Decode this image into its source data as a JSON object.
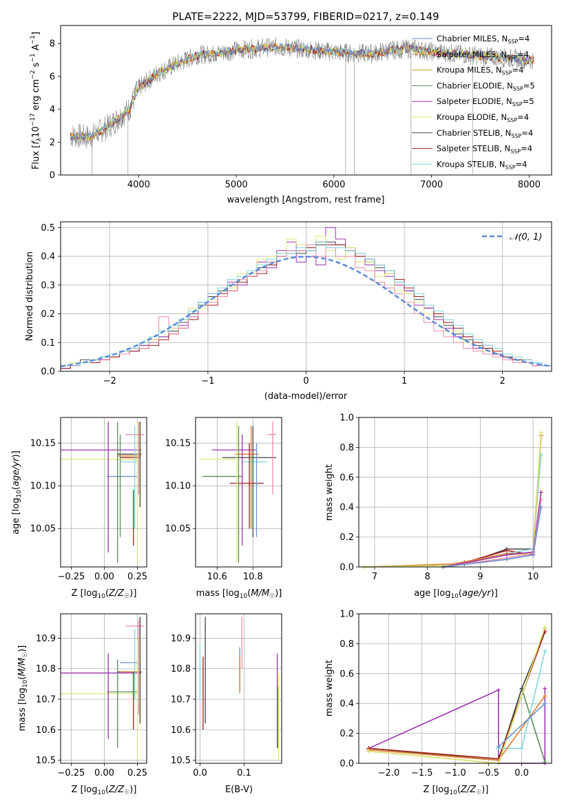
{
  "figure_title": "PLATE=2222, MJD=53799, FIBERID=0217, z=0.149",
  "colors": {
    "Chabrier MILES": "#6a8fd0",
    "Salpeter MILES": "#e07b2a",
    "Kroupa MILES": "#c99a18",
    "Chabrier ELODIE": "#5b8a5b",
    "Salpeter ELODIE": "#9b30b0",
    "Kroupa ELODIE": "#d9e86b",
    "Chabrier STELIB": "#444444",
    "Salpeter STELIB": "#a01818",
    "Kroupa STELIB": "#7fd6e0",
    "Pink": "#e88aa8",
    "data": "#808080"
  },
  "chart_data": [
    {
      "id": "spectrum",
      "type": "line",
      "title": "PLATE=2222, MJD=53799, FIBERID=0217, z=0.149",
      "xlabel": "wavelength [Angstrom, rest frame]",
      "ylabel": "Flux [f_λ 10^-17 erg cm^-2 s^-1 A^-1]",
      "xlim": [
        3200,
        8230
      ],
      "ylim": [
        0,
        9.1
      ],
      "xticks": [
        4000,
        5000,
        6000,
        7000,
        8000
      ],
      "yticks": [
        0,
        2,
        4,
        6,
        8
      ],
      "grid": false,
      "legend_position": "top-right",
      "legend": [
        "Chabrier MILES, N_SSP=4",
        "Salpeter MILES, N_SSP=4",
        "Kroupa MILES, N_SSP=4",
        "Chabrier ELODIE, N_SSP=5",
        "Salpeter ELODIE, N_SSP=5",
        "Kroupa ELODIE, N_SSP=4",
        "Chabrier STELIB, N_SSP=4",
        "Salpeter STELIB, N_SSP=4",
        "Kroupa STELIB, N_SSP=4"
      ],
      "continuum": [
        [
          3300,
          2.4
        ],
        [
          3500,
          2.3
        ],
        [
          3700,
          3.0
        ],
        [
          3900,
          4.0
        ],
        [
          4000,
          5.3
        ],
        [
          4200,
          6.2
        ],
        [
          4400,
          6.8
        ],
        [
          4600,
          7.3
        ],
        [
          4800,
          7.4
        ],
        [
          5000,
          7.6
        ],
        [
          5200,
          7.7
        ],
        [
          5400,
          7.8
        ],
        [
          5600,
          7.7
        ],
        [
          5800,
          7.6
        ],
        [
          6000,
          7.5
        ],
        [
          6200,
          7.4
        ],
        [
          6400,
          7.4
        ],
        [
          6600,
          7.6
        ],
        [
          6800,
          7.7
        ],
        [
          7000,
          7.5
        ],
        [
          7200,
          7.4
        ],
        [
          7400,
          7.3
        ],
        [
          7600,
          7.2
        ],
        [
          7800,
          7.1
        ],
        [
          8000,
          7.0
        ]
      ]
    },
    {
      "id": "residuals",
      "type": "bar",
      "xlabel": "(data-model)/error",
      "ylabel": "Normed distribution",
      "xlim": [
        -2.5,
        2.5
      ],
      "ylim": [
        0,
        0.52
      ],
      "xticks": [
        -2,
        -1,
        0,
        1,
        2
      ],
      "yticks": [
        0.0,
        0.1,
        0.2,
        0.3,
        0.4,
        0.5
      ],
      "grid": true,
      "legend_position": "top-right",
      "legend": [
        "N(0,1)"
      ],
      "bins": [
        -2.5,
        -2.4,
        -2.3,
        -2.2,
        -2.1,
        -2.0,
        -1.9,
        -1.8,
        -1.7,
        -1.6,
        -1.5,
        -1.4,
        -1.3,
        -1.2,
        -1.1,
        -1.0,
        -0.9,
        -0.8,
        -0.7,
        -0.6,
        -0.5,
        -0.4,
        -0.3,
        -0.2,
        -0.1,
        0.0,
        0.1,
        0.2,
        0.3,
        0.4,
        0.5,
        0.6,
        0.7,
        0.8,
        0.9,
        1.0,
        1.1,
        1.2,
        1.3,
        1.4,
        1.5,
        1.6,
        1.7,
        1.8,
        1.9,
        2.0,
        2.1,
        2.2,
        2.3,
        2.4
      ],
      "series": [
        {
          "color": "#444444",
          "values": [
            0.02,
            0.03,
            0.04,
            0.04,
            0.05,
            0.05,
            0.07,
            0.08,
            0.09,
            0.1,
            0.12,
            0.14,
            0.17,
            0.2,
            0.23,
            0.26,
            0.28,
            0.3,
            0.32,
            0.34,
            0.36,
            0.38,
            0.4,
            0.42,
            0.41,
            0.42,
            0.44,
            0.45,
            0.44,
            0.42,
            0.4,
            0.38,
            0.36,
            0.34,
            0.31,
            0.28,
            0.25,
            0.22,
            0.19,
            0.16,
            0.13,
            0.11,
            0.09,
            0.08,
            0.06,
            0.05,
            0.04,
            0.03,
            0.03,
            0.02
          ]
        },
        {
          "color": "#9b30b0",
          "values": [
            0.01,
            0.02,
            0.03,
            0.04,
            0.04,
            0.06,
            0.06,
            0.07,
            0.09,
            0.11,
            0.12,
            0.15,
            0.16,
            0.19,
            0.24,
            0.27,
            0.26,
            0.31,
            0.3,
            0.33,
            0.38,
            0.36,
            0.42,
            0.45,
            0.38,
            0.4,
            0.37,
            0.5,
            0.46,
            0.43,
            0.41,
            0.37,
            0.35,
            0.33,
            0.3,
            0.28,
            0.23,
            0.22,
            0.18,
            0.15,
            0.12,
            0.12,
            0.08,
            0.09,
            0.06,
            0.05,
            0.04,
            0.03,
            0.02,
            0.02
          ]
        },
        {
          "color": "#d9e86b",
          "values": [
            0.02,
            0.03,
            0.03,
            0.04,
            0.05,
            0.06,
            0.07,
            0.08,
            0.1,
            0.11,
            0.14,
            0.15,
            0.18,
            0.22,
            0.22,
            0.25,
            0.29,
            0.29,
            0.34,
            0.34,
            0.39,
            0.4,
            0.41,
            0.46,
            0.44,
            0.43,
            0.47,
            0.42,
            0.39,
            0.43,
            0.38,
            0.38,
            0.33,
            0.34,
            0.28,
            0.27,
            0.24,
            0.2,
            0.2,
            0.14,
            0.14,
            0.1,
            0.1,
            0.07,
            0.07,
            0.05,
            0.05,
            0.03,
            0.03,
            0.02
          ]
        },
        {
          "color": "#a01818",
          "values": [
            0.01,
            0.02,
            0.03,
            0.03,
            0.04,
            0.05,
            0.06,
            0.07,
            0.08,
            0.09,
            0.11,
            0.13,
            0.15,
            0.18,
            0.2,
            0.23,
            0.27,
            0.28,
            0.31,
            0.33,
            0.34,
            0.37,
            0.4,
            0.41,
            0.42,
            0.43,
            0.45,
            0.44,
            0.44,
            0.42,
            0.4,
            0.39,
            0.37,
            0.35,
            0.32,
            0.29,
            0.26,
            0.23,
            0.2,
            0.17,
            0.15,
            0.12,
            0.1,
            0.08,
            0.07,
            0.05,
            0.04,
            0.04,
            0.03,
            0.02
          ]
        },
        {
          "color": "#e88aa8",
          "values": [
            0.02,
            0.02,
            0.03,
            0.04,
            0.04,
            0.06,
            0.06,
            0.08,
            0.08,
            0.1,
            0.19,
            0.13,
            0.15,
            0.19,
            0.2,
            0.24,
            0.26,
            0.28,
            0.32,
            0.33,
            0.35,
            0.38,
            0.4,
            0.42,
            0.42,
            0.44,
            0.4,
            0.43,
            0.4,
            0.4,
            0.36,
            0.35,
            0.31,
            0.29,
            0.27,
            0.24,
            0.2,
            0.17,
            0.14,
            0.12,
            0.1,
            0.08,
            0.07,
            0.06,
            0.05,
            0.04,
            0.03,
            0.03,
            0.02,
            0.02
          ]
        },
        {
          "color": "#7fd6e0",
          "values": [
            0.02,
            0.02,
            0.03,
            0.04,
            0.05,
            0.06,
            0.07,
            0.08,
            0.1,
            0.12,
            0.14,
            0.16,
            0.18,
            0.21,
            0.24,
            0.27,
            0.29,
            0.32,
            0.33,
            0.35,
            0.37,
            0.39,
            0.41,
            0.41,
            0.43,
            0.42,
            0.45,
            0.43,
            0.43,
            0.42,
            0.41,
            0.39,
            0.37,
            0.35,
            0.31,
            0.3,
            0.27,
            0.23,
            0.21,
            0.18,
            0.16,
            0.13,
            0.11,
            0.09,
            0.08,
            0.06,
            0.05,
            0.04,
            0.03,
            0.02
          ]
        }
      ],
      "gaussian": {
        "mu": 0,
        "sigma": 1
      }
    },
    {
      "id": "age-vs-Z",
      "type": "scatter",
      "xlabel": "Z [log10(Z/Z☉)]",
      "ylabel": "age [log10(age/yr)]",
      "xlim": [
        -0.33,
        0.32
      ],
      "ylim": [
        10.005,
        10.18
      ],
      "xticks": [
        -0.25,
        0.0,
        0.25
      ],
      "yticks": [
        10.05,
        10.1,
        10.15
      ],
      "grid": true
    },
    {
      "id": "age-vs-mass",
      "type": "scatter",
      "xlabel": "mass [log10(M/M☉)]",
      "ylabel": "",
      "xlim": [
        10.48,
        10.96
      ],
      "ylim": [
        10.005,
        10.18
      ],
      "xticks": [
        10.6,
        10.8
      ],
      "yticks": [
        10.05,
        10.1,
        10.15
      ],
      "grid": true
    },
    {
      "id": "mass-weight-vs-age",
      "type": "line",
      "xlabel": "age [log10(age/yr)]",
      "ylabel": "mass weight",
      "xlim": [
        6.7,
        10.35
      ],
      "ylim": [
        0,
        1.0
      ],
      "xticks": [
        7,
        8,
        9,
        10
      ],
      "yticks": [
        0.0,
        0.2,
        0.4,
        0.6,
        0.8,
        1.0
      ],
      "grid": true
    },
    {
      "id": "mass-vs-Z",
      "type": "scatter",
      "xlabel": "Z [log10(Z/Z☉)]",
      "ylabel": "mass [log10(M/M☉)]",
      "xlim": [
        -0.33,
        0.32
      ],
      "ylim": [
        10.49,
        10.98
      ],
      "xticks": [
        -0.25,
        0.0,
        0.25
      ],
      "yticks": [
        10.5,
        10.6,
        10.7,
        10.8,
        10.9
      ],
      "grid": true
    },
    {
      "id": "mass-vs-ebv",
      "type": "scatter",
      "xlabel": "E(B-V)",
      "ylabel": "",
      "xlim": [
        -0.01,
        0.185
      ],
      "ylim": [
        10.49,
        10.98
      ],
      "xticks": [
        0.0,
        0.1
      ],
      "yticks": [
        10.5,
        10.6,
        10.7,
        10.8,
        10.9
      ],
      "grid": true
    },
    {
      "id": "mass-weight-vs-Z",
      "type": "line",
      "xlabel": "Z [log10(Z/Z☉)]",
      "ylabel": "mass weight",
      "xlim": [
        -2.45,
        0.45
      ],
      "ylim": [
        0,
        1.0
      ],
      "xticks": [
        -2.0,
        -1.5,
        -1.0,
        -0.5,
        0.0
      ],
      "yticks": [
        0.0,
        0.2,
        0.4,
        0.6,
        0.8,
        1.0
      ],
      "grid": true
    }
  ]
}
